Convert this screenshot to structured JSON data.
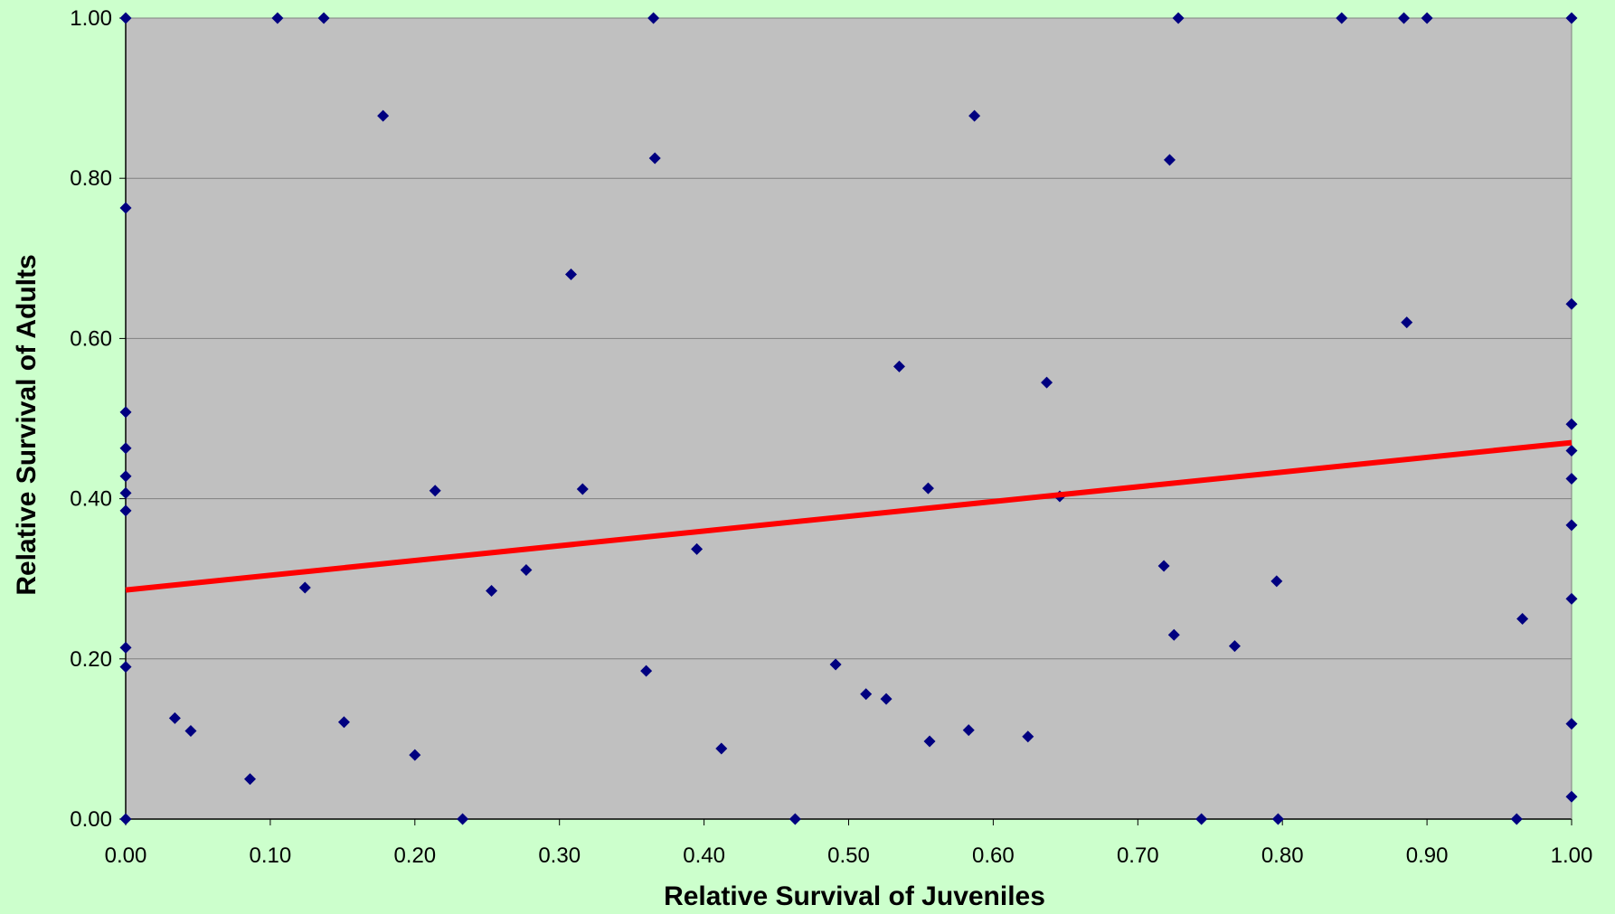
{
  "colors": {
    "page_background": "#ccffcc",
    "plot_background": "#c0c0c0",
    "gridline": "#808080",
    "marker": "#000080",
    "trendline": "#ff0000"
  },
  "chart_data": {
    "type": "scatter",
    "title": "",
    "xlabel": "Relative Survival of Juveniles",
    "ylabel": "Relative Survival of Adults",
    "xlim": [
      0,
      1
    ],
    "ylim": [
      0,
      1
    ],
    "x_ticks": [
      "0.00",
      "0.10",
      "0.20",
      "0.30",
      "0.40",
      "0.50",
      "0.60",
      "0.70",
      "0.80",
      "0.90",
      "1.00"
    ],
    "y_ticks": [
      "0.00",
      "0.20",
      "0.40",
      "0.60",
      "0.80",
      "1.00"
    ],
    "grid": "horizontal",
    "legend": "none",
    "marker": "diamond",
    "points": [
      [
        0.0,
        1.0
      ],
      [
        0.105,
        1.0
      ],
      [
        0.137,
        1.0
      ],
      [
        0.365,
        1.0
      ],
      [
        0.728,
        1.0
      ],
      [
        0.841,
        1.0
      ],
      [
        0.884,
        1.0
      ],
      [
        0.9,
        1.0
      ],
      [
        1.0,
        1.0
      ],
      [
        0.178,
        0.878
      ],
      [
        0.587,
        0.878
      ],
      [
        0.366,
        0.825
      ],
      [
        0.722,
        0.823
      ],
      [
        0.0,
        0.763
      ],
      [
        0.308,
        0.68
      ],
      [
        1.0,
        0.643
      ],
      [
        0.886,
        0.62
      ],
      [
        0.535,
        0.565
      ],
      [
        0.637,
        0.545
      ],
      [
        0.0,
        0.508
      ],
      [
        1.0,
        0.493
      ],
      [
        0.0,
        0.463
      ],
      [
        1.0,
        0.46
      ],
      [
        0.0,
        0.428
      ],
      [
        1.0,
        0.425
      ],
      [
        0.316,
        0.412
      ],
      [
        0.555,
        0.413
      ],
      [
        0.214,
        0.41
      ],
      [
        0.0,
        0.407
      ],
      [
        0.646,
        0.403
      ],
      [
        0.0,
        0.385
      ],
      [
        1.0,
        0.367
      ],
      [
        0.395,
        0.337
      ],
      [
        0.718,
        0.316
      ],
      [
        0.277,
        0.311
      ],
      [
        0.796,
        0.297
      ],
      [
        0.124,
        0.289
      ],
      [
        0.253,
        0.285
      ],
      [
        1.0,
        0.275
      ],
      [
        0.966,
        0.25
      ],
      [
        0.725,
        0.23
      ],
      [
        0.767,
        0.216
      ],
      [
        0.0,
        0.214
      ],
      [
        0.491,
        0.193
      ],
      [
        0.0,
        0.19
      ],
      [
        0.36,
        0.185
      ],
      [
        0.512,
        0.156
      ],
      [
        0.526,
        0.15
      ],
      [
        0.034,
        0.126
      ],
      [
        0.151,
        0.121
      ],
      [
        1.0,
        0.119
      ],
      [
        0.045,
        0.11
      ],
      [
        0.583,
        0.111
      ],
      [
        0.624,
        0.103
      ],
      [
        0.556,
        0.097
      ],
      [
        0.412,
        0.088
      ],
      [
        0.2,
        0.08
      ],
      [
        0.086,
        0.05
      ],
      [
        1.0,
        0.028
      ],
      [
        0.0,
        0.0
      ],
      [
        0.233,
        0.0
      ],
      [
        0.463,
        0.0
      ],
      [
        0.744,
        0.0
      ],
      [
        0.797,
        0.0
      ],
      [
        0.962,
        0.0
      ]
    ],
    "trendline": {
      "x": [
        0,
        1
      ],
      "y": [
        0.286,
        0.47
      ]
    }
  }
}
